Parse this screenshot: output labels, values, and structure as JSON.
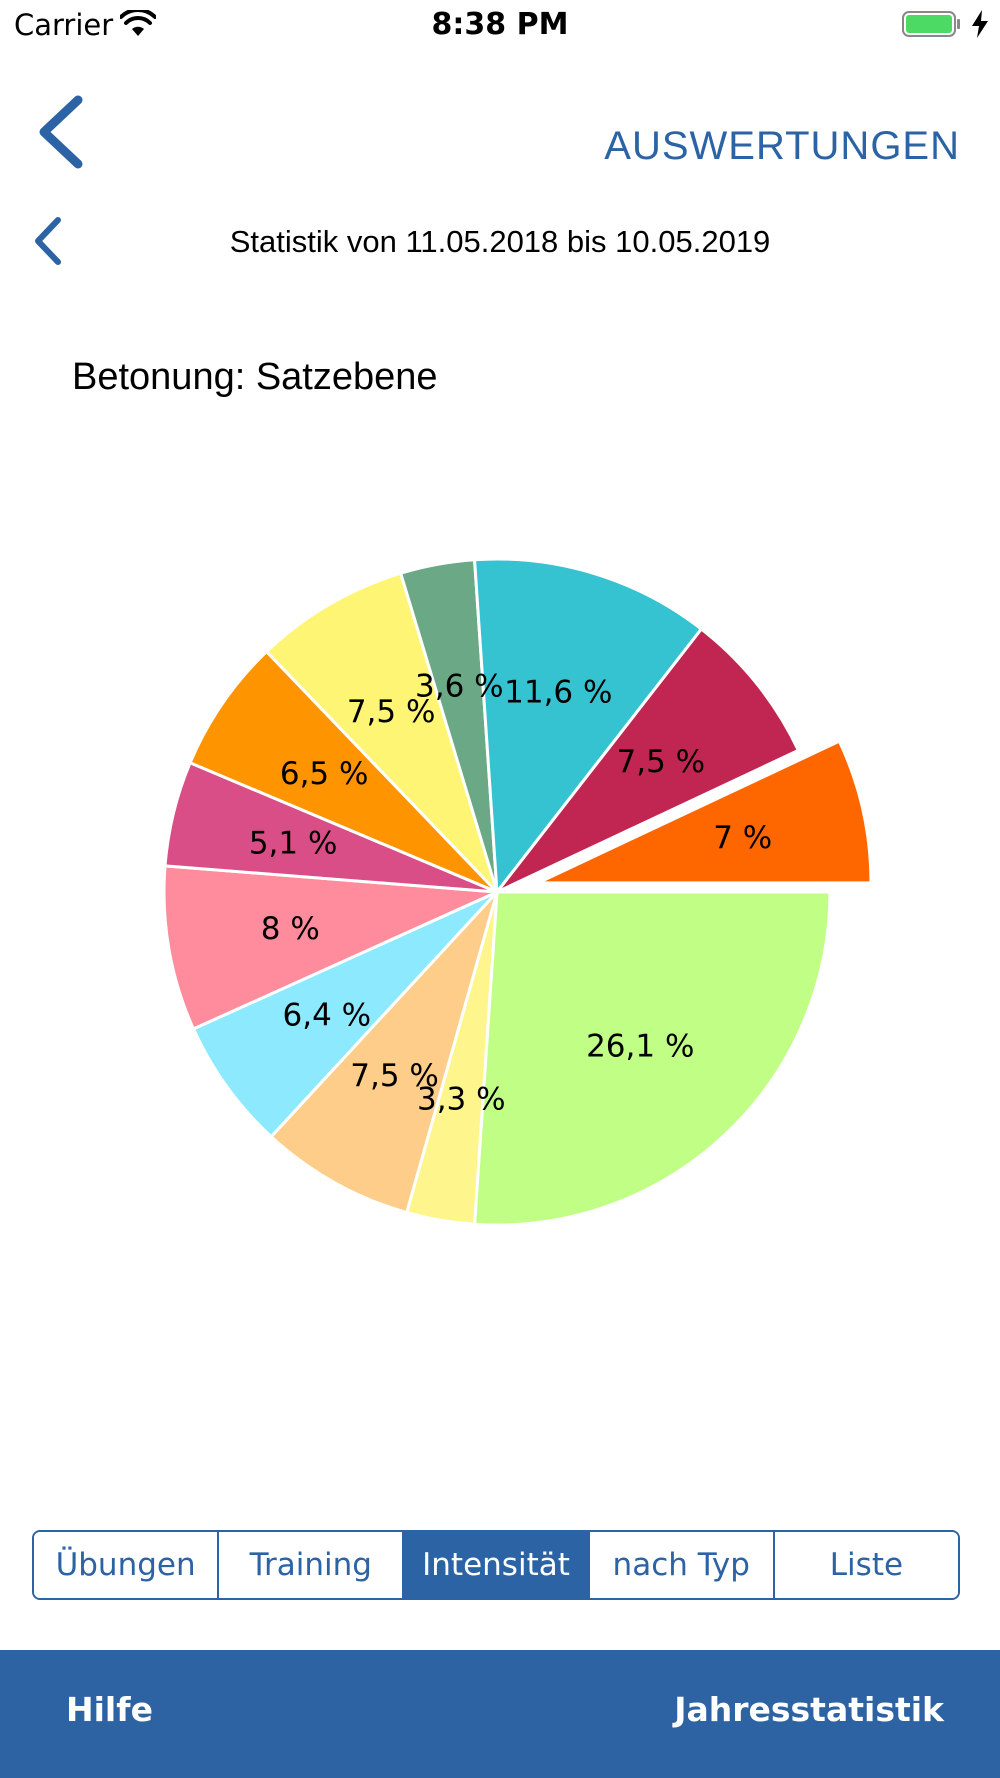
{
  "status_bar": {
    "carrier": "Carrier",
    "time": "8:38 PM",
    "icons": [
      "wifi-icon",
      "battery-icon",
      "charging-icon"
    ],
    "battery_color": "#4cd964"
  },
  "nav": {
    "title": "AUSWERTUNGEN",
    "back_icon": "chevron-left-icon"
  },
  "range": {
    "text": "Statistik von 11.05.2018 bis 10.05.2019",
    "prev_icon": "chevron-left-icon"
  },
  "chart_data": {
    "type": "pie",
    "title": "Betonung: Satzebene",
    "slices": [
      {
        "label": "26,1  %",
        "value": 26.1,
        "color": "#c1fe86",
        "exploded": false
      },
      {
        "label": "3,3  %",
        "value": 3.3,
        "color": "#fef58c",
        "exploded": false
      },
      {
        "label": "7,5  %",
        "value": 7.5,
        "color": "#fecd8a",
        "exploded": false
      },
      {
        "label": "6,4  %",
        "value": 6.4,
        "color": "#8de9fe",
        "exploded": false
      },
      {
        "label": "8  %",
        "value": 8.0,
        "color": "#fe8c9c",
        "exploded": false
      },
      {
        "label": "5,1  %",
        "value": 5.1,
        "color": "#d94e87",
        "exploded": false
      },
      {
        "label": "6,5  %",
        "value": 6.5,
        "color": "#fe9400",
        "exploded": false
      },
      {
        "label": "7,5  %",
        "value": 7.5,
        "color": "#fef575",
        "exploded": false
      },
      {
        "label": "3,6  %",
        "value": 3.6,
        "color": "#6aa886",
        "exploded": false
      },
      {
        "label": "11,6  %",
        "value": 11.6,
        "color": "#35c3d2",
        "exploded": false
      },
      {
        "label": "7,5  %",
        "value": 7.5,
        "color": "#c12552",
        "exploded": false
      },
      {
        "label": "7  %",
        "value": 7.0,
        "color": "#fe6700",
        "exploded": true
      }
    ],
    "start_angle_deg": 0,
    "direction": "clockwise-from-right"
  },
  "tabs": [
    {
      "label": "Übungen",
      "active": false
    },
    {
      "label": "Training",
      "active": false
    },
    {
      "label": "Intensität",
      "active": true
    },
    {
      "label": "nach Typ",
      "active": false
    },
    {
      "label": "Liste",
      "active": false
    }
  ],
  "bottom_bar": {
    "left": "Hilfe",
    "right": "Jahresstatistik"
  },
  "colors": {
    "accent": "#2b63a4"
  }
}
